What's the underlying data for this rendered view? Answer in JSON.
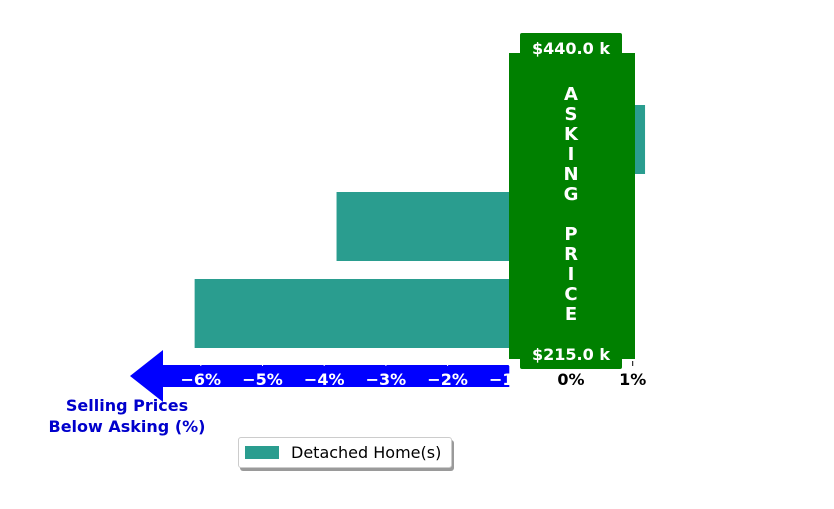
{
  "chart_data": {
    "type": "bar",
    "orientation": "horizontal",
    "series": [
      {
        "name": "Detached Home(s)",
        "color": "#2a9d8f",
        "values": [
          1.2,
          -3.8,
          -6.1
        ]
      }
    ],
    "x_ticks": [
      "−6%",
      "−5%",
      "−4%",
      "−3%",
      "−2%",
      "−1%",
      "0%",
      "1%"
    ],
    "x_tick_values": [
      -6,
      -5,
      -4,
      -3,
      -2,
      -1,
      0,
      1
    ],
    "xlim": [
      -7,
      1.5
    ],
    "xlabel": "Selling Prices\nBelow Asking (%)",
    "band": {
      "label": "ASKING PRICE",
      "top_value": "$440.0 k",
      "bottom_value": "$215.0 k",
      "color": "#008000"
    },
    "arrow_color": "#0000ff",
    "xlabel_color": "#0000cc",
    "legend": {
      "placement": "bottom-center",
      "label": "Detached Home(s)"
    },
    "grid": false
  }
}
